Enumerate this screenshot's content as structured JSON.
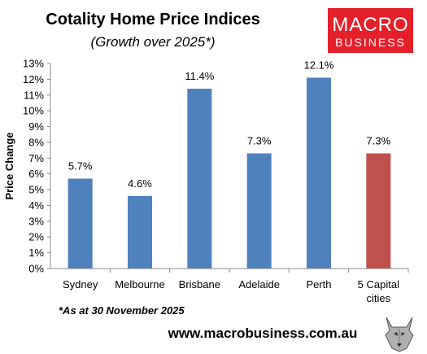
{
  "chart_data": {
    "type": "bar",
    "title": "Cotality Home Price Indices",
    "subtitle": "(Growth over 2025*)",
    "ylabel": "Price Change",
    "xlabel": "",
    "categories": [
      "Sydney",
      "Melbourne",
      "Brisbane",
      "Adelaide",
      "Perth",
      "5 Capital cities"
    ],
    "values": [
      5.7,
      4.6,
      11.4,
      7.3,
      12.1,
      7.3
    ],
    "data_labels": [
      "5.7%",
      "4.6%",
      "11.4%",
      "7.3%",
      "12.1%",
      "7.3%"
    ],
    "bar_colors": [
      "#4f81bd",
      "#4f81bd",
      "#4f81bd",
      "#4f81bd",
      "#4f81bd",
      "#c0504d"
    ],
    "yticks": [
      "0%",
      "1%",
      "2%",
      "3%",
      "4%",
      "5%",
      "6%",
      "7%",
      "8%",
      "9%",
      "10%",
      "11%",
      "12%",
      "13%"
    ],
    "ylim": [
      0,
      13
    ],
    "grid": false,
    "legend": "none"
  },
  "footnote": "*As at 30 November 2025",
  "website": "www.macrobusiness.com.au",
  "logo": {
    "line1": "MACRO",
    "line2": "BUSINESS",
    "color": "#e4202b"
  },
  "mascot_icon": "wolf-icon"
}
